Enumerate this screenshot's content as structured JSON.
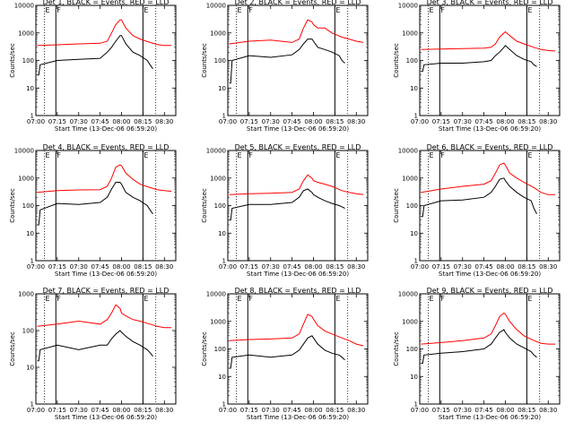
{
  "figure": {
    "xlabel": "Start Time (13-Dec-06 06:59:20)",
    "ylabel": "Counts/sec",
    "x_ticks": [
      "07:00",
      "07:15",
      "07:30",
      "07:45",
      "08:00",
      "08:15",
      "08:30"
    ],
    "y_ticks": [
      "1",
      "10",
      "100",
      "1000",
      "10000"
    ],
    "marker_labels": [
      "E",
      "F",
      "E"
    ],
    "colors": {
      "events": "#000000",
      "lld": "#ff0000"
    }
  },
  "chart_data": [
    {
      "type": "line",
      "title": "Det 1, BLACK = Events, RED = LLD",
      "xlim": [
        "07:00",
        "08:38"
      ],
      "ylim": [
        1,
        10000
      ],
      "ylog": true,
      "markers": [
        "07:06",
        "07:14",
        "08:15",
        "08:24"
      ],
      "series": [
        {
          "name": "BLACK = Events",
          "color": "#000000",
          "x": [
            "07:01",
            "07:02",
            "07:03",
            "07:15",
            "07:30",
            "07:45",
            "07:50",
            "07:53",
            "07:56",
            "07:59",
            "08:00",
            "08:03",
            "08:08",
            "08:13",
            "08:18",
            "08:20",
            "08:22"
          ],
          "y": [
            30,
            30,
            70,
            100,
            110,
            120,
            200,
            300,
            500,
            800,
            800,
            400,
            200,
            150,
            100,
            70,
            50
          ]
        },
        {
          "name": "RED = LLD",
          "color": "#ff0000",
          "x": [
            "07:01",
            "07:15",
            "07:30",
            "07:45",
            "07:50",
            "07:53",
            "07:56",
            "07:59",
            "08:00",
            "08:03",
            "08:08",
            "08:13",
            "08:20",
            "08:25",
            "08:30",
            "08:35"
          ],
          "y": [
            350,
            370,
            400,
            420,
            500,
            1000,
            2000,
            3000,
            3000,
            1500,
            800,
            600,
            450,
            380,
            350,
            350
          ]
        }
      ]
    },
    {
      "type": "line",
      "title": "Det 2, BLACK = Events, RED = LLD",
      "xlim": [
        "07:00",
        "08:38"
      ],
      "ylim": [
        1,
        10000
      ],
      "ylog": true,
      "markers": [
        "07:06",
        "07:14",
        "08:15",
        "08:24"
      ],
      "series": [
        {
          "name": "BLACK = Events",
          "color": "#000000",
          "x": [
            "07:01",
            "07:02",
            "07:03",
            "07:15",
            "07:30",
            "07:45",
            "07:50",
            "07:53",
            "07:56",
            "07:59",
            "08:00",
            "08:03",
            "08:08",
            "08:13",
            "08:18",
            "08:20",
            "08:22"
          ],
          "y": [
            15,
            15,
            100,
            150,
            130,
            160,
            250,
            400,
            600,
            600,
            500,
            300,
            250,
            200,
            150,
            100,
            80
          ]
        },
        {
          "name": "RED = LLD",
          "color": "#ff0000",
          "x": [
            "07:01",
            "07:15",
            "07:30",
            "07:45",
            "07:50",
            "07:53",
            "07:56",
            "07:59",
            "08:00",
            "08:03",
            "08:08",
            "08:13",
            "08:20",
            "08:25",
            "08:30",
            "08:35"
          ],
          "y": [
            400,
            500,
            550,
            450,
            600,
            1500,
            3000,
            2500,
            2000,
            1500,
            1500,
            1000,
            700,
            600,
            500,
            450
          ]
        }
      ]
    },
    {
      "type": "line",
      "title": "Det 3, BLACK = Events, RED = LLD",
      "xlim": [
        "07:00",
        "08:38"
      ],
      "ylim": [
        1,
        10000
      ],
      "ylog": true,
      "markers": [
        "07:06",
        "07:14",
        "08:15",
        "08:24"
      ],
      "series": [
        {
          "name": "BLACK = Events",
          "color": "#000000",
          "x": [
            "07:01",
            "07:02",
            "07:03",
            "07:15",
            "07:30",
            "07:45",
            "07:50",
            "07:53",
            "07:56",
            "07:59",
            "08:00",
            "08:03",
            "08:08",
            "08:13",
            "08:18",
            "08:20",
            "08:22"
          ],
          "y": [
            40,
            40,
            70,
            80,
            80,
            90,
            100,
            150,
            200,
            300,
            350,
            250,
            150,
            110,
            90,
            70,
            60
          ]
        },
        {
          "name": "RED = LLD",
          "color": "#ff0000",
          "x": [
            "07:01",
            "07:15",
            "07:30",
            "07:45",
            "07:50",
            "07:53",
            "07:56",
            "07:59",
            "08:00",
            "08:03",
            "08:08",
            "08:13",
            "08:20",
            "08:25",
            "08:30",
            "08:35"
          ],
          "y": [
            250,
            260,
            270,
            280,
            300,
            400,
            700,
            1000,
            1100,
            800,
            500,
            400,
            300,
            250,
            230,
            220
          ]
        }
      ]
    },
    {
      "type": "line",
      "title": "Det 4, BLACK = Events, RED = LLD",
      "xlim": [
        "07:00",
        "08:38"
      ],
      "ylim": [
        1,
        10000
      ],
      "ylog": true,
      "markers": [
        "07:06",
        "07:14",
        "08:15",
        "08:24"
      ],
      "series": [
        {
          "name": "BLACK = Events",
          "color": "#000000",
          "x": [
            "07:01",
            "07:02",
            "07:03",
            "07:15",
            "07:30",
            "07:45",
            "07:50",
            "07:53",
            "07:56",
            "07:59",
            "08:00",
            "08:03",
            "08:08",
            "08:13",
            "08:18",
            "08:20",
            "08:22"
          ],
          "y": [
            20,
            20,
            70,
            120,
            110,
            130,
            200,
            400,
            700,
            700,
            600,
            300,
            200,
            150,
            100,
            70,
            50
          ]
        },
        {
          "name": "RED = LLD",
          "color": "#ff0000",
          "x": [
            "07:01",
            "07:15",
            "07:30",
            "07:45",
            "07:50",
            "07:53",
            "07:56",
            "07:59",
            "08:00",
            "08:03",
            "08:08",
            "08:13",
            "08:20",
            "08:25",
            "08:30",
            "08:35"
          ],
          "y": [
            300,
            350,
            370,
            380,
            500,
            1000,
            2500,
            3000,
            2800,
            1500,
            900,
            600,
            450,
            380,
            350,
            330
          ]
        }
      ]
    },
    {
      "type": "line",
      "title": "Det 5, BLACK = Events, RED = LLD",
      "xlim": [
        "07:00",
        "08:38"
      ],
      "ylim": [
        1,
        10000
      ],
      "ylog": true,
      "markers": [
        "07:06",
        "07:14",
        "08:15",
        "08:24"
      ],
      "series": [
        {
          "name": "BLACK = Events",
          "color": "#000000",
          "x": [
            "07:01",
            "07:02",
            "07:03",
            "07:15",
            "07:30",
            "07:45",
            "07:50",
            "07:53",
            "07:56",
            "07:59",
            "08:00",
            "08:03",
            "08:08",
            "08:13",
            "08:18",
            "08:20",
            "08:22"
          ],
          "y": [
            30,
            30,
            80,
            110,
            110,
            130,
            200,
            350,
            400,
            300,
            250,
            200,
            150,
            120,
            100,
            90,
            80
          ]
        },
        {
          "name": "RED = LLD",
          "color": "#ff0000",
          "x": [
            "07:01",
            "07:15",
            "07:30",
            "07:45",
            "07:50",
            "07:53",
            "07:56",
            "07:59",
            "08:00",
            "08:03",
            "08:08",
            "08:13",
            "08:20",
            "08:25",
            "08:30",
            "08:35"
          ],
          "y": [
            250,
            270,
            280,
            300,
            400,
            800,
            1300,
            1000,
            800,
            700,
            600,
            500,
            350,
            300,
            270,
            250
          ]
        }
      ]
    },
    {
      "type": "line",
      "title": "Det 6, BLACK = Events, RED = LLD",
      "xlim": [
        "07:00",
        "08:38"
      ],
      "ylim": [
        1,
        10000
      ],
      "ylog": true,
      "markers": [
        "07:06",
        "07:14",
        "08:15",
        "08:24"
      ],
      "series": [
        {
          "name": "BLACK = Events",
          "color": "#000000",
          "x": [
            "07:01",
            "07:02",
            "07:03",
            "07:15",
            "07:30",
            "07:45",
            "07:50",
            "07:53",
            "07:56",
            "07:59",
            "08:00",
            "08:03",
            "08:08",
            "08:13",
            "08:18",
            "08:20",
            "08:22"
          ],
          "y": [
            40,
            40,
            100,
            150,
            160,
            200,
            300,
            500,
            900,
            1000,
            800,
            500,
            300,
            200,
            150,
            80,
            50
          ]
        },
        {
          "name": "RED = LLD",
          "color": "#ff0000",
          "x": [
            "07:01",
            "07:15",
            "07:30",
            "07:45",
            "07:50",
            "07:53",
            "07:56",
            "07:59",
            "08:00",
            "08:03",
            "08:08",
            "08:13",
            "08:20",
            "08:25",
            "08:30",
            "08:35"
          ],
          "y": [
            300,
            400,
            500,
            600,
            800,
            1500,
            3000,
            3500,
            3000,
            1500,
            1000,
            700,
            450,
            300,
            250,
            250
          ]
        }
      ]
    },
    {
      "type": "line",
      "title": "Det 7, BLACK = Events, RED = LLD",
      "xlim": [
        "07:00",
        "08:38"
      ],
      "ylim": [
        1,
        1000
      ],
      "ylog": true,
      "markers": [
        "07:06",
        "07:14",
        "08:15",
        "08:24"
      ],
      "series": [
        {
          "name": "BLACK = Events",
          "color": "#000000",
          "x": [
            "07:01",
            "07:02",
            "07:03",
            "07:15",
            "07:30",
            "07:45",
            "07:50",
            "07:53",
            "07:56",
            "07:59",
            "08:00",
            "08:03",
            "08:08",
            "08:13",
            "08:18",
            "08:20",
            "08:22"
          ],
          "y": [
            15,
            15,
            30,
            40,
            30,
            40,
            40,
            60,
            80,
            100,
            90,
            70,
            50,
            40,
            30,
            25,
            20
          ]
        },
        {
          "name": "RED = LLD",
          "color": "#ff0000",
          "x": [
            "07:01",
            "07:15",
            "07:30",
            "07:45",
            "07:50",
            "07:53",
            "07:56",
            "07:59",
            "08:00",
            "08:03",
            "08:08",
            "08:13",
            "08:20",
            "08:25",
            "08:30",
            "08:35"
          ],
          "y": [
            130,
            150,
            180,
            150,
            200,
            300,
            500,
            400,
            300,
            250,
            200,
            180,
            150,
            130,
            120,
            120
          ]
        }
      ]
    },
    {
      "type": "line",
      "title": "Det 8, BLACK = Events, RED = LLD",
      "xlim": [
        "07:00",
        "08:38"
      ],
      "ylim": [
        1,
        10000
      ],
      "ylog": true,
      "markers": [
        "07:06",
        "07:14",
        "08:15",
        "08:24"
      ],
      "series": [
        {
          "name": "BLACK = Events",
          "color": "#000000",
          "x": [
            "07:01",
            "07:02",
            "07:03",
            "07:15",
            "07:30",
            "07:45",
            "07:50",
            "07:53",
            "07:56",
            "07:59",
            "08:00",
            "08:03",
            "08:08",
            "08:13",
            "08:18",
            "08:20",
            "08:22"
          ],
          "y": [
            20,
            20,
            50,
            60,
            50,
            60,
            90,
            150,
            250,
            300,
            250,
            150,
            90,
            70,
            60,
            50,
            40
          ]
        },
        {
          "name": "RED = LLD",
          "color": "#ff0000",
          "x": [
            "07:01",
            "07:15",
            "07:30",
            "07:45",
            "07:50",
            "07:53",
            "07:56",
            "07:59",
            "08:00",
            "08:03",
            "08:08",
            "08:13",
            "08:20",
            "08:25",
            "08:30",
            "08:35"
          ],
          "y": [
            200,
            220,
            230,
            250,
            350,
            800,
            1800,
            1500,
            1200,
            700,
            450,
            350,
            250,
            200,
            150,
            130
          ]
        }
      ]
    },
    {
      "type": "line",
      "title": "Det 9, BLACK = Events, RED = LLD",
      "xlim": [
        "07:00",
        "08:38"
      ],
      "ylim": [
        1,
        10000
      ],
      "ylog": true,
      "markers": [
        "07:06",
        "07:14",
        "08:15",
        "08:24"
      ],
      "series": [
        {
          "name": "BLACK = Events",
          "color": "#000000",
          "x": [
            "07:01",
            "07:02",
            "07:03",
            "07:15",
            "07:30",
            "07:45",
            "07:50",
            "07:53",
            "07:56",
            "07:59",
            "08:00",
            "08:03",
            "08:08",
            "08:13",
            "08:18",
            "08:20",
            "08:22"
          ],
          "y": [
            30,
            30,
            60,
            70,
            80,
            100,
            150,
            250,
            400,
            500,
            400,
            250,
            150,
            110,
            80,
            60,
            50
          ]
        },
        {
          "name": "RED = LLD",
          "color": "#ff0000",
          "x": [
            "07:01",
            "07:15",
            "07:30",
            "07:45",
            "07:50",
            "07:53",
            "07:56",
            "07:59",
            "08:00",
            "08:03",
            "08:08",
            "08:13",
            "08:20",
            "08:25",
            "08:30",
            "08:35"
          ],
          "y": [
            150,
            170,
            200,
            250,
            350,
            700,
            1500,
            2000,
            1800,
            1000,
            500,
            300,
            200,
            160,
            150,
            150
          ]
        }
      ]
    }
  ]
}
